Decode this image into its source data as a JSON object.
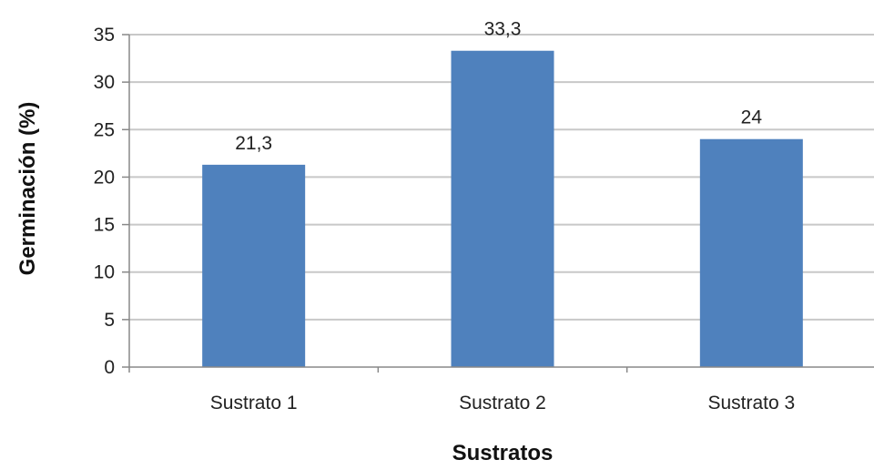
{
  "chart_data": {
    "type": "bar",
    "title": "",
    "xlabel": "Sustratos",
    "ylabel": "Germinación (%)",
    "categories": [
      "Sustrato 1",
      "Sustrato 2",
      "Sustrato 3"
    ],
    "values": [
      21.3,
      33.3,
      24
    ],
    "data_labels": [
      "21,3",
      "33,3",
      "24"
    ],
    "ylim": [
      0,
      35
    ],
    "yticks": [
      0,
      5,
      10,
      15,
      20,
      25,
      30,
      35
    ],
    "grid": true,
    "legend": "none",
    "colors": {
      "bar": "#4f81bd",
      "grid": "#c8c8c8",
      "axis": "#888888"
    }
  }
}
